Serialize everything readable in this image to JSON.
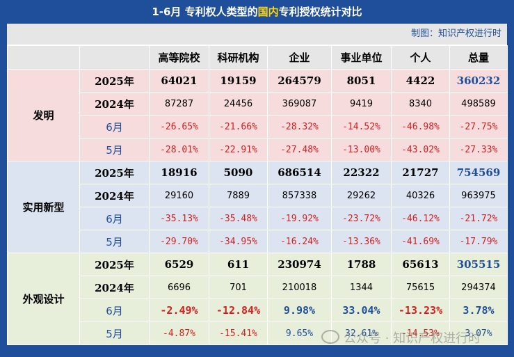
{
  "title": {
    "prefix": "1-6月 专利权人类型的",
    "highlight": "国内",
    "suffix": "专利授权统计对比"
  },
  "credit": "制图：知识产权进行时",
  "columns": [
    "高等院校",
    "科研机构",
    "企业",
    "事业单位",
    "个人",
    "总量"
  ],
  "sections": [
    {
      "label": "发明",
      "rows": [
        {
          "label": "2025年",
          "kind": "year-bold",
          "values": [
            "64021",
            "19159",
            "264579",
            "8051",
            "4422",
            "360232"
          ]
        },
        {
          "label": "2024年",
          "kind": "year-plain",
          "values": [
            "87287",
            "24456",
            "369087",
            "9419",
            "8340",
            "498589"
          ]
        },
        {
          "label": "6月",
          "kind": "pct",
          "values": [
            "-26.65%",
            "-21.66%",
            "-28.32%",
            "-14.52%",
            "-46.98%",
            "-27.75%"
          ]
        },
        {
          "label": "5月",
          "kind": "pct",
          "values": [
            "-28.01%",
            "-22.91%",
            "-27.48%",
            "-13.00%",
            "-43.02%",
            "-27.33%"
          ]
        }
      ]
    },
    {
      "label": "实用新型",
      "rows": [
        {
          "label": "2025年",
          "kind": "year-bold",
          "values": [
            "18916",
            "5090",
            "686514",
            "22322",
            "21727",
            "754569"
          ]
        },
        {
          "label": "2024年",
          "kind": "year-plain",
          "values": [
            "29160",
            "7889",
            "857338",
            "29262",
            "40326",
            "963975"
          ]
        },
        {
          "label": "6月",
          "kind": "pct",
          "values": [
            "-35.13%",
            "-35.48%",
            "-19.92%",
            "-23.72%",
            "-46.12%",
            "-21.72%"
          ]
        },
        {
          "label": "5月",
          "kind": "pct",
          "values": [
            "-29.70%",
            "-34.95%",
            "-16.24%",
            "-13.36%",
            "-41.69%",
            "-17.79%"
          ]
        }
      ]
    },
    {
      "label": "外观设计",
      "rows": [
        {
          "label": "2025年",
          "kind": "year-bold",
          "values": [
            "6529",
            "611",
            "230974",
            "1788",
            "65613",
            "305515"
          ]
        },
        {
          "label": "2024年",
          "kind": "year-plain",
          "values": [
            "6696",
            "701",
            "210018",
            "1344",
            "75615",
            "294374"
          ]
        },
        {
          "label": "6月",
          "kind": "pct-bold",
          "values": [
            "-2.49%",
            "-12.84%",
            "9.98%",
            "33.04%",
            "-13.23%",
            "3.78%"
          ]
        },
        {
          "label": "5月",
          "kind": "pct",
          "values": [
            "-4.87%",
            "-15.41%",
            "9.65%",
            "32.61%",
            "-14.53%",
            "3.07%"
          ]
        }
      ]
    }
  ],
  "watermark": "公众号 · 知识产权进行时",
  "colors": {
    "brand_blue": "#1f4e9a",
    "negative_red": "#d32020",
    "title_highlight": "#ffd400"
  }
}
